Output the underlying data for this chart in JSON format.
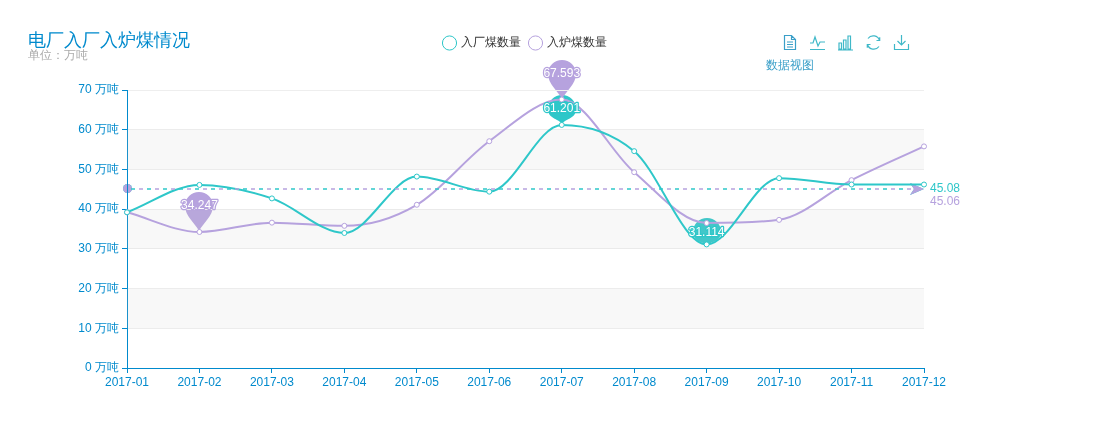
{
  "chart_data": {
    "type": "line",
    "title": "电厂入厂入炉煤情况",
    "subtitle": "单位：万吨",
    "categories": [
      "2017-01",
      "2017-02",
      "2017-03",
      "2017-04",
      "2017-05",
      "2017-06",
      "2017-07",
      "2017-08",
      "2017-09",
      "2017-10",
      "2017-11",
      "2017-12"
    ],
    "series": [
      {
        "name": "入厂煤数量",
        "color": "#2ec7c9",
        "values": [
          39.2,
          46.1,
          42.7,
          34,
          48.2,
          44.4,
          61.201,
          54.6,
          31.114,
          47.8,
          46.2,
          46.2
        ],
        "value_labels": [
          null,
          null,
          null,
          null,
          null,
          null,
          "61.201",
          null,
          "31.114",
          null,
          null,
          null
        ]
      },
      {
        "name": "入炉煤数量",
        "color": "#b6a2de",
        "values": [
          39.2,
          34.247,
          36.6,
          35.8,
          41.1,
          57.1,
          67.593,
          49.3,
          36.5,
          37.3,
          47.3,
          55.8
        ],
        "value_labels": [
          null,
          "34.247",
          null,
          null,
          null,
          null,
          "67.593",
          null,
          null,
          null,
          null,
          null
        ]
      }
    ],
    "ylim": [
      0,
      70
    ],
    "yticks": [
      {
        "value": 0,
        "label": "0 万吨"
      },
      {
        "value": 10,
        "label": "10 万吨"
      },
      {
        "value": 20,
        "label": "20 万吨"
      },
      {
        "value": 30,
        "label": "30 万吨"
      },
      {
        "value": 40,
        "label": "40 万吨"
      },
      {
        "value": 50,
        "label": "50 万吨"
      },
      {
        "value": 60,
        "label": "60 万吨"
      },
      {
        "value": 70,
        "label": "70 万吨"
      }
    ],
    "grid": "y",
    "legend": "top",
    "marker": "circle",
    "ref_lines": [
      {
        "axis": "y",
        "value": 45.08,
        "label": "45.08",
        "color": "#2ec7c9",
        "line_style": "dashed"
      },
      {
        "axis": "y",
        "value": 45.06,
        "label": "45.06",
        "color": "#b6a2de",
        "line_style": "dashed"
      }
    ],
    "annotations": [
      "数据视图"
    ]
  }
}
